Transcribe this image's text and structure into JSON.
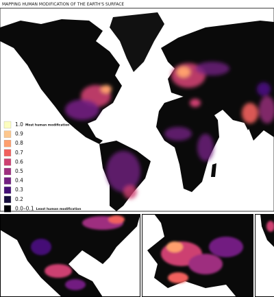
{
  "title": "MAPPING HUMAN MODIFICATION OF THE EARTH'S SURFACE",
  "legend": [
    {
      "label": "1.0",
      "note": "Most human modification",
      "color": "#fcfdbf"
    },
    {
      "label": "0.9",
      "color": "#fdc78d"
    },
    {
      "label": "0.8",
      "color": "#fe9f6d"
    },
    {
      "label": "0.7",
      "color": "#f1605d"
    },
    {
      "label": "0.6",
      "color": "#cd4071"
    },
    {
      "label": "0.5",
      "color": "#9e2f7f"
    },
    {
      "label": "0.4",
      "color": "#721f81"
    },
    {
      "label": "0.3",
      "color": "#440f76"
    },
    {
      "label": "0.2",
      "color": "#180f3d"
    },
    {
      "label": "0.0–0.1",
      "note": "Least human modification",
      "color": "#000004"
    }
  ]
}
